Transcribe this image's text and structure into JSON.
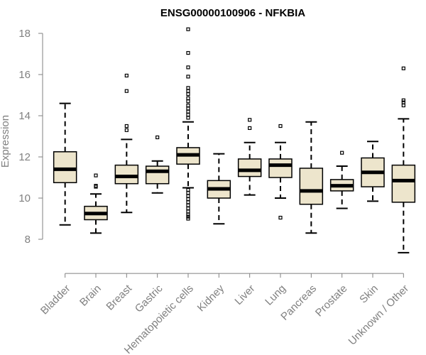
{
  "chart_data": {
    "type": "boxplot",
    "title": "ENSG00000100906 - NFKBIA",
    "ylabel": "Expression",
    "xlabel": "",
    "ylim": [
      7.1,
      18.4
    ],
    "yticks": [
      8,
      10,
      12,
      14,
      16,
      18
    ],
    "box_fill": "#ede5cc",
    "categories": [
      "Bladder",
      "Brain",
      "Breast",
      "Gastric",
      "Hematopoietic cells",
      "Kidney",
      "Liver",
      "Lung",
      "Pancreas",
      "Prostate",
      "Skin",
      "Unknown / Other"
    ],
    "boxes": [
      {
        "name": "Bladder",
        "whisker_low": 8.7,
        "q1": 10.75,
        "median": 11.4,
        "q3": 12.25,
        "whisker_high": 14.6,
        "outliers": []
      },
      {
        "name": "Brain",
        "whisker_low": 8.3,
        "q1": 8.95,
        "median": 9.25,
        "q3": 9.6,
        "whisker_high": 10.2,
        "outliers": [
          10.55,
          10.6,
          11.1
        ]
      },
      {
        "name": "Breast",
        "whisker_low": 9.3,
        "q1": 10.7,
        "median": 11.05,
        "q3": 11.6,
        "whisker_high": 12.85,
        "outliers": [
          13.3,
          13.5,
          15.2,
          15.95
        ]
      },
      {
        "name": "Gastric",
        "whisker_low": 10.25,
        "q1": 10.7,
        "median": 11.3,
        "q3": 11.55,
        "whisker_high": 11.8,
        "outliers": [
          12.95
        ]
      },
      {
        "name": "Hematopoietic cells",
        "whisker_low": 10.5,
        "q1": 11.65,
        "median": 12.1,
        "q3": 12.45,
        "whisker_high": 13.7,
        "outliers": [
          9.0,
          9.1,
          9.2,
          9.35,
          9.5,
          9.65,
          9.8,
          9.95,
          10.1,
          10.25,
          10.4,
          13.9,
          14.05,
          14.2,
          14.35,
          14.5,
          14.7,
          14.85,
          15.05,
          15.2,
          15.35,
          15.9,
          16.35,
          17.05,
          18.2
        ]
      },
      {
        "name": "Kidney",
        "whisker_low": 8.75,
        "q1": 10.0,
        "median": 10.45,
        "q3": 10.85,
        "whisker_high": 12.15,
        "outliers": []
      },
      {
        "name": "Liver",
        "whisker_low": 10.15,
        "q1": 11.05,
        "median": 11.35,
        "q3": 11.9,
        "whisker_high": 12.7,
        "outliers": [
          13.4,
          13.8
        ]
      },
      {
        "name": "Lung",
        "whisker_low": 10.0,
        "q1": 11.0,
        "median": 11.6,
        "q3": 11.9,
        "whisker_high": 12.7,
        "outliers": [
          9.05,
          13.5
        ]
      },
      {
        "name": "Pancreas",
        "whisker_low": 8.3,
        "q1": 9.7,
        "median": 10.35,
        "q3": 11.45,
        "whisker_high": 13.7,
        "outliers": []
      },
      {
        "name": "Prostate",
        "whisker_low": 9.5,
        "q1": 10.35,
        "median": 10.6,
        "q3": 10.9,
        "whisker_high": 11.55,
        "outliers": [
          12.2
        ]
      },
      {
        "name": "Skin",
        "whisker_low": 9.85,
        "q1": 10.55,
        "median": 11.25,
        "q3": 11.95,
        "whisker_high": 12.75,
        "outliers": []
      },
      {
        "name": "Unknown / Other",
        "whisker_low": 7.35,
        "q1": 9.8,
        "median": 10.85,
        "q3": 11.6,
        "whisker_high": 13.85,
        "outliers": [
          14.5,
          14.65,
          14.75,
          16.3
        ]
      }
    ]
  }
}
